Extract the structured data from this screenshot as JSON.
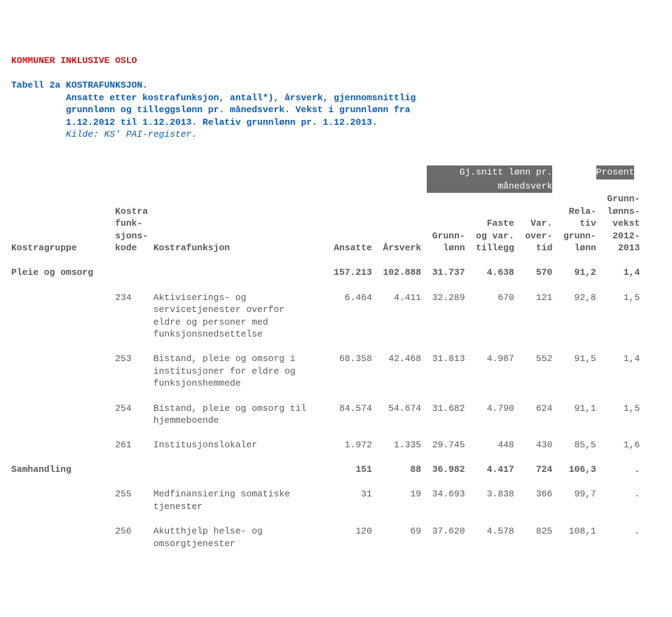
{
  "header": {
    "title": "KOMMUNER INKLUSIVE OSLO",
    "table_label": "Tabell 2a",
    "caption1": "KOSTRAFUNKSJON.",
    "caption2": "Ansatte etter kostrafunksjon, antall*), årsverk, gjennomsnittlig",
    "caption3": "grunnlønn og tilleggslønn pr. månedsverk. Vekst i grunnlønn fra",
    "caption4": "1.12.2012 til 1.12.2013. Relativ grunnlønn pr. 1.12.2013.",
    "source": "Kilde: KS' PAI-register."
  },
  "columns": {
    "c1a": "Kostra",
    "c1b": "funk-",
    "c1c": "sjons-",
    "c1d": "kode",
    "c0": "Kostragruppe",
    "c2": "Kostrafunksjon",
    "c3": "Ansatte",
    "c4": "Årsverk",
    "c5a": "Grunn-",
    "c5b": "lønn",
    "c6a": "Faste",
    "c6b": "og var.",
    "c6c": "tillegg",
    "c7a": "Var.",
    "c7b": "over-",
    "c7c": "tid",
    "c8a": "Rela-",
    "c8b": "tiv",
    "c8c": "grunn-",
    "c8d": "lønn",
    "c9a": "Grunn-",
    "c9b": "lønns-",
    "c9c": "vekst",
    "c9d": "2012-",
    "c9e": "2013",
    "banner1": "Gj.snitt lønn pr.",
    "banner2": "månedsverk",
    "banner3": "Prosent"
  },
  "groups": [
    {
      "label": "Pleie og omsorg",
      "vals": {
        "ansatte": "157.213",
        "aarsverk": "102.888",
        "grunn": "31.737",
        "tillegg": "4.638",
        "overtid": "570",
        "rel": "91,2",
        "vekst": "1,4"
      },
      "rows": [
        {
          "kode": "234",
          "desc": [
            "Aktiviserings- og",
            "servicetjenester overfor",
            "eldre og personer med",
            "funksjonsnedsettelse"
          ],
          "vals": {
            "ansatte": "6.464",
            "aarsverk": "4.411",
            "grunn": "32.289",
            "tillegg": "670",
            "overtid": "121",
            "rel": "92,8",
            "vekst": "1,5"
          }
        },
        {
          "kode": "253",
          "desc": [
            "Bistand, pleie og omsorg i",
            "institusjoner for eldre og",
            "funksjonshemmede"
          ],
          "vals": {
            "ansatte": "68.358",
            "aarsverk": "42.468",
            "grunn": "31.813",
            "tillegg": "4.987",
            "overtid": "552",
            "rel": "91,5",
            "vekst": "1,4"
          }
        },
        {
          "kode": "254",
          "desc": [
            "Bistand, pleie og omsorg til",
            "hjemmeboende"
          ],
          "vals": {
            "ansatte": "84.574",
            "aarsverk": "54.674",
            "grunn": "31.682",
            "tillegg": "4.790",
            "overtid": "624",
            "rel": "91,1",
            "vekst": "1,5"
          }
        },
        {
          "kode": "261",
          "desc": [
            "Institusjonslokaler"
          ],
          "vals": {
            "ansatte": "1.972",
            "aarsverk": "1.335",
            "grunn": "29.745",
            "tillegg": "448",
            "overtid": "430",
            "rel": "85,5",
            "vekst": "1,6"
          }
        }
      ]
    },
    {
      "label": "Samhandling",
      "vals": {
        "ansatte": "151",
        "aarsverk": "88",
        "grunn": "36.982",
        "tillegg": "4.417",
        "overtid": "724",
        "rel": "106,3",
        "vekst": "."
      },
      "rows": [
        {
          "kode": "255",
          "desc": [
            "Medfinansiering somatiske",
            "tjenester"
          ],
          "vals": {
            "ansatte": "31",
            "aarsverk": "19",
            "grunn": "34.693",
            "tillegg": "3.838",
            "overtid": "366",
            "rel": "99,7",
            "vekst": "."
          }
        },
        {
          "kode": "256",
          "desc": [
            "Akutthjelp helse- og",
            "omsorgtjenester"
          ],
          "vals": {
            "ansatte": "120",
            "aarsverk": "69",
            "grunn": "37.620",
            "tillegg": "4.578",
            "overtid": "825",
            "rel": "108,1",
            "vekst": "."
          }
        }
      ]
    }
  ]
}
